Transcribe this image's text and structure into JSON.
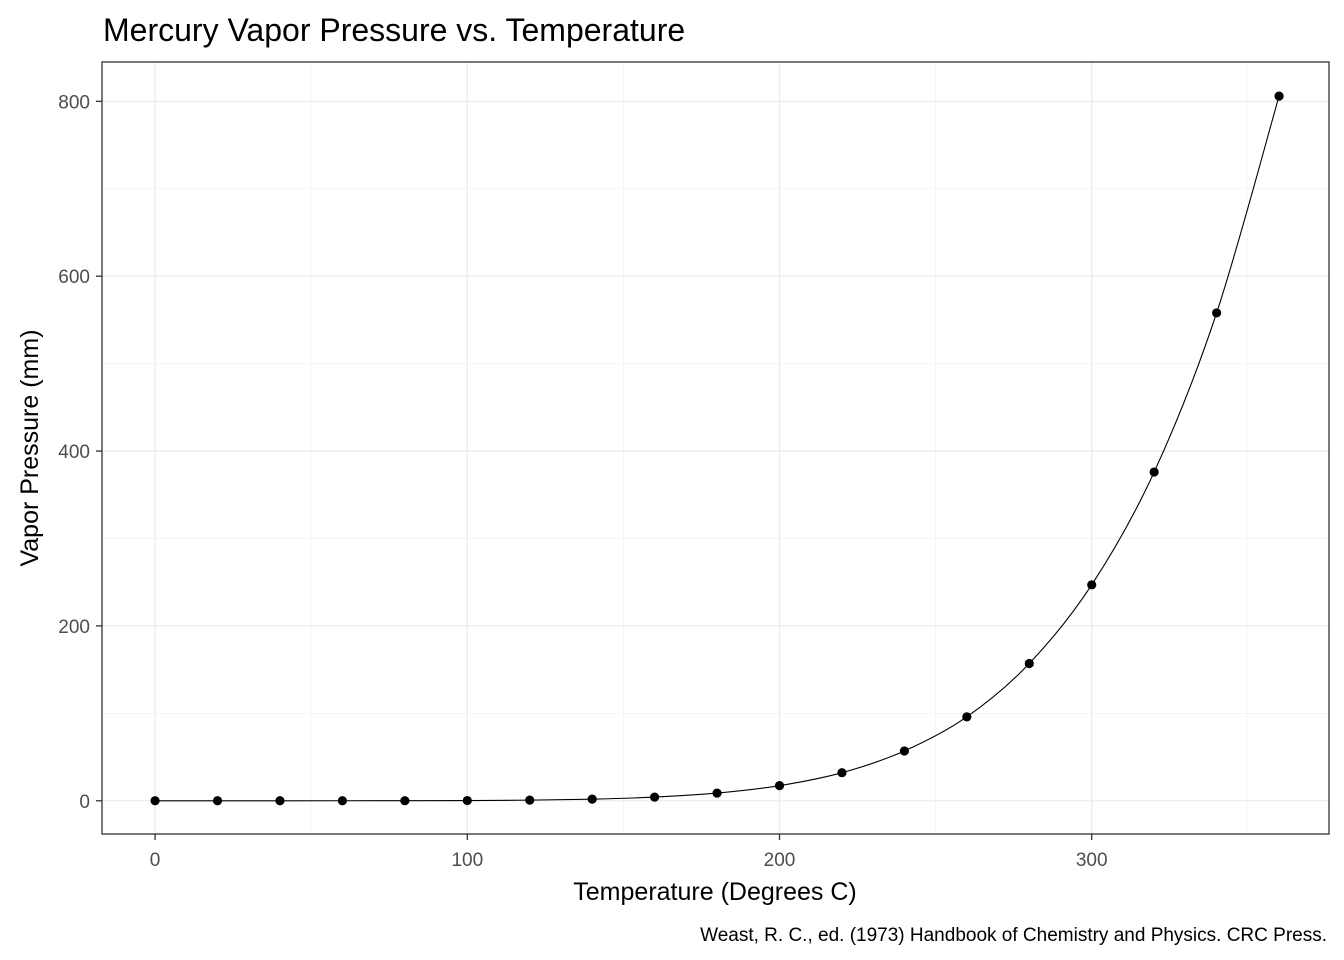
{
  "chart_data": {
    "type": "line",
    "title": "Mercury Vapor Pressure vs. Temperature",
    "xlabel": "Temperature (Degrees C)",
    "ylabel": "Vapor Pressure (mm)",
    "caption": "Weast, R. C., ed. (1973) Handbook of Chemistry and Physics. CRC Press.",
    "xlim": [
      -17,
      376
    ],
    "ylim": [
      -38,
      845
    ],
    "x_ticks": [
      0,
      100,
      200,
      300
    ],
    "y_ticks": [
      0,
      200,
      400,
      600,
      800
    ],
    "x_minor": [
      50,
      150,
      250,
      350
    ],
    "y_minor": [
      100,
      300,
      500,
      700
    ],
    "grid": true,
    "series": [
      {
        "x": [
          0,
          20,
          40,
          60,
          80,
          100,
          120,
          140,
          160,
          180,
          200,
          220,
          240,
          260,
          280,
          300,
          320,
          340,
          360
        ],
        "y": [
          0.0002,
          0.0012,
          0.006,
          0.03,
          0.09,
          0.27,
          0.75,
          1.85,
          4.2,
          8.8,
          17.3,
          32.1,
          57,
          96,
          157,
          247,
          376,
          558,
          806
        ],
        "point_color": "#000000",
        "line_color": "#000000",
        "smooth": true
      }
    ]
  }
}
